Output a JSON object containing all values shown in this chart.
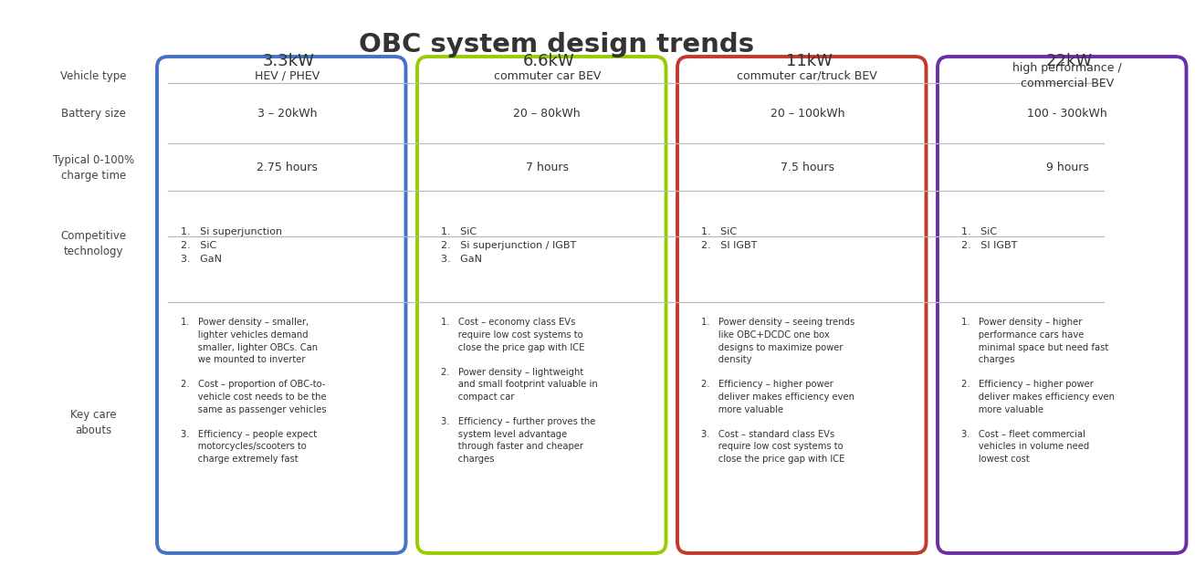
{
  "title": "OBC system design trends",
  "columns": [
    "3.3kW",
    "6.6kW",
    "11kW",
    "22kW"
  ],
  "col_colors": [
    "#4472C4",
    "#99CC00",
    "#C0392B",
    "#6B2EA8"
  ],
  "row_labels": [
    "Vehicle type",
    "Battery size",
    "Typical 0-100%\ncharge time",
    "Competitive\ntechnology",
    "Key care\nabouts"
  ],
  "vehicle_type": [
    "HEV / PHEV",
    "commuter car BEV",
    "commuter car/truck BEV",
    "high performance /\ncommercial BEV"
  ],
  "battery_size": [
    "3 – 20kWh",
    "20 – 80kWh",
    "20 – 100kWh",
    "100 - 300kWh"
  ],
  "charge_time": [
    "2.75 hours",
    "7 hours",
    "7.5 hours",
    "9 hours"
  ],
  "competitive_tech": [
    "1.   Si superjunction\n2.   SiC\n3.   GaN",
    "1.   SiC\n2.   Si superjunction / IGBT\n3.   GaN",
    "1.   SiC\n2.   SI IGBT",
    "1.   SiC\n2.   SI IGBT"
  ],
  "key_care": [
    "1.   Power density – smaller,\n      lighter vehicles demand\n      smaller, lighter OBCs. Can\n      we mounted to inverter\n\n2.   Cost – proportion of OBC-to-\n      vehicle cost needs to be the\n      same as passenger vehicles\n\n3.   Efficiency – people expect\n      motorcycles/scooters to\n      charge extremely fast",
    "1.   Cost – economy class EVs\n      require low cost systems to\n      close the price gap with ICE\n\n2.   Power density – lightweight\n      and small footprint valuable in\n      compact car\n\n3.   Efficiency – further proves the\n      system level advantage\n      through faster and cheaper\n      charges",
    "1.   Power density – seeing trends\n      like OBC+DCDC one box\n      designs to maximize power\n      density\n\n2.   Efficiency – higher power\n      deliver makes efficiency even\n      more valuable\n\n3.   Cost – standard class EVs\n      require low cost systems to\n      close the price gap with ICE",
    "1.   Power density – higher\n      performance cars have\n      minimal space but need fast\n      charges\n\n2.   Efficiency – higher power\n      deliver makes efficiency even\n      more valuable\n\n3.   Cost – fleet commercial\n      vehicles in volume need\n      lowest cost"
  ],
  "bg_color": "#FFFFFF",
  "text_color": "#333333",
  "label_color": "#444444"
}
